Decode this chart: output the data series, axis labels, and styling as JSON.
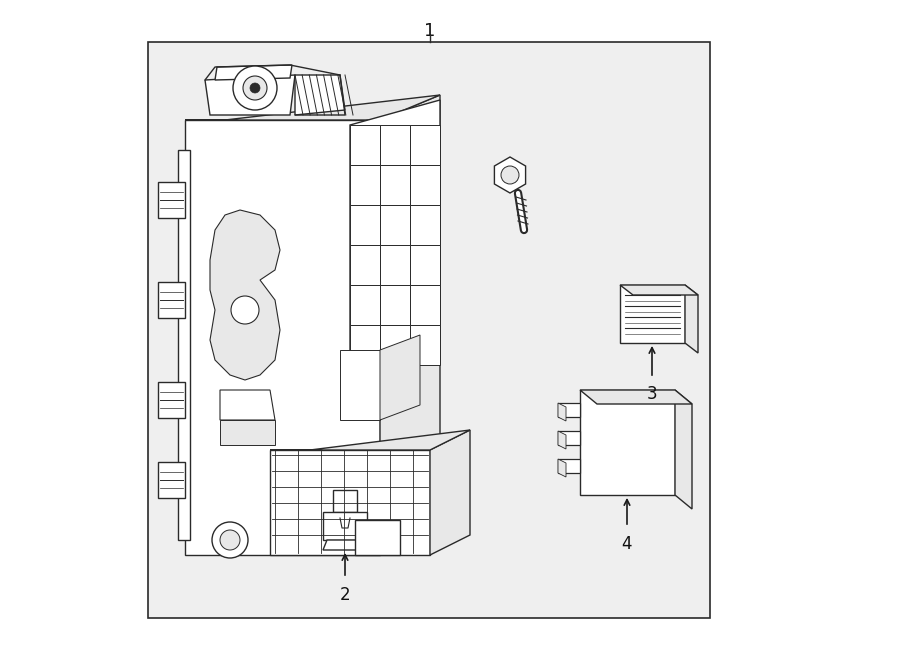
{
  "bg_color": "#ffffff",
  "diagram_box_bg": "#efefef",
  "line_color": "#2a2a2a",
  "line_width": 1.0,
  "arrow_color": "#1a1a1a",
  "label_color": "#111111",
  "label_fontsize": 12,
  "white": "#ffffff",
  "lightgray": "#e8e8e8",
  "midgray": "#cccccc"
}
